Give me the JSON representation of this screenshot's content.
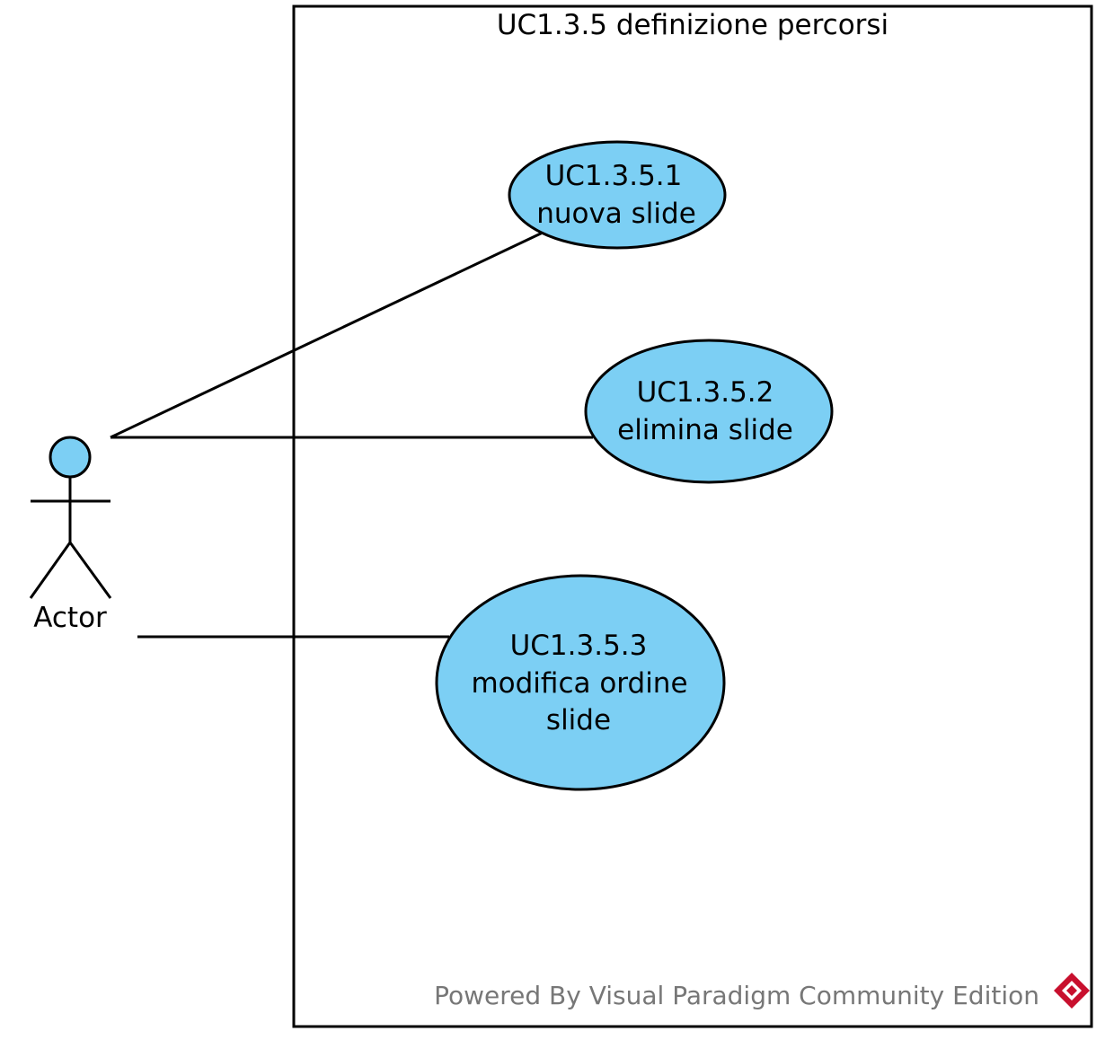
{
  "diagram": {
    "system": {
      "title": "UC1.3.5 definizione percorsi"
    },
    "actor": {
      "name": "Actor"
    },
    "use_cases": [
      {
        "id": "uc1",
        "lines": [
          "UC1.3.5.1",
          "nuova slide"
        ]
      },
      {
        "id": "uc2",
        "lines": [
          "UC1.3.5.2",
          "elimina slide"
        ]
      },
      {
        "id": "uc3",
        "lines": [
          "UC1.3.5.3",
          "modifica ordine",
          "slide"
        ]
      }
    ],
    "associations": [
      {
        "from": "Actor",
        "to": "UC1.3.5.1"
      },
      {
        "from": "Actor",
        "to": "UC1.3.5.2"
      },
      {
        "from": "Actor",
        "to": "UC1.3.5.3"
      }
    ]
  },
  "watermark": {
    "text": "Powered By Visual Paradigm Community Edition"
  },
  "colors": {
    "use_case_fill": "#7ccff4",
    "actor_fill": "#7ccff4",
    "stroke": "#000000",
    "watermark": "#777777",
    "logo": "#c8102e"
  }
}
